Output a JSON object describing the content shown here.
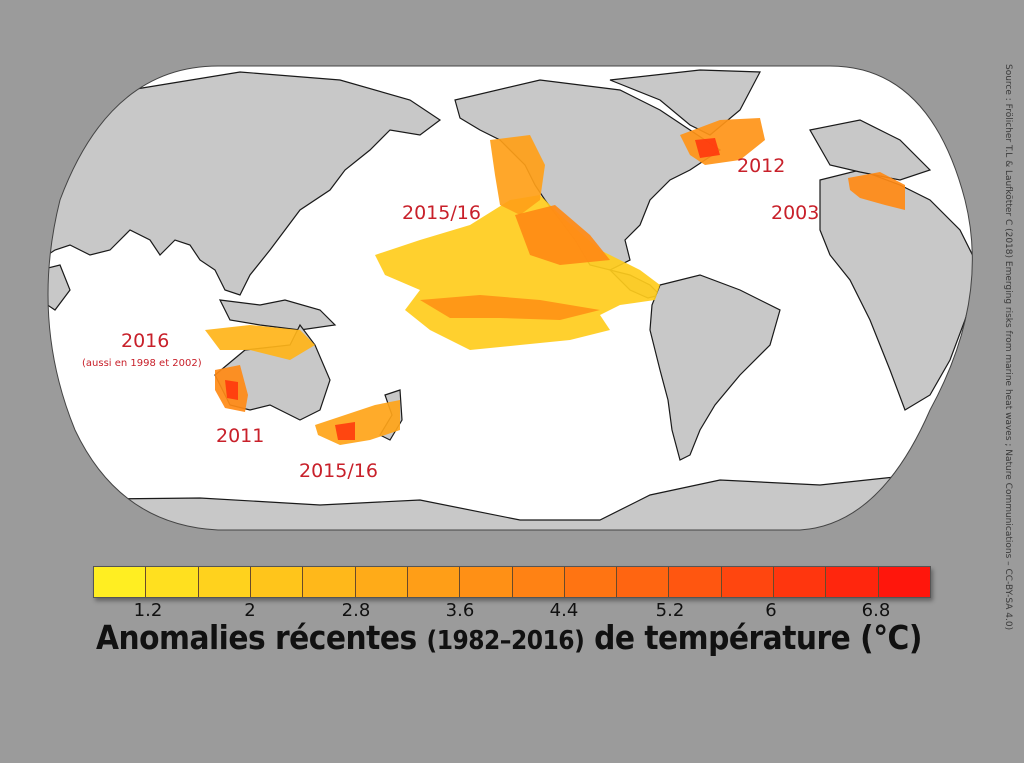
{
  "colors": {
    "background": "#9b9b9b",
    "ocean": "#ffffff",
    "land": "#c8c8c8",
    "label": "#c8202a",
    "scale": [
      "#ffee22",
      "#ffe01f",
      "#ffd21d",
      "#ffc51b",
      "#ffb81a",
      "#ffab18",
      "#ff9e17",
      "#ff9015",
      "#ff8214",
      "#ff7412",
      "#ff6511",
      "#ff5610",
      "#ff460f",
      "#ff360e",
      "#ff260d",
      "#ff160c"
    ]
  },
  "legend": {
    "ticks": [
      "1.2",
      "2",
      "2.8",
      "3.6",
      "4.4",
      "5.2",
      "6",
      "6.8"
    ],
    "title_main": "Anomalies récentes",
    "title_years": "(1982–2016)",
    "title_rest": "de température (°C)"
  },
  "events": {
    "pacific": "2015/16",
    "atlantic": "2012",
    "mediterranean": "2003",
    "north_australia": "2016",
    "north_australia_note": "(aussi en 1998 et 2002)",
    "west_australia": "2011",
    "tasman": "2015/16"
  },
  "source": "Source : Frölicher T.L & Laufkötter C (2018) Emerging risks from marine heat waves ; Nature Communications – CC-BY-SA 4.0)"
}
